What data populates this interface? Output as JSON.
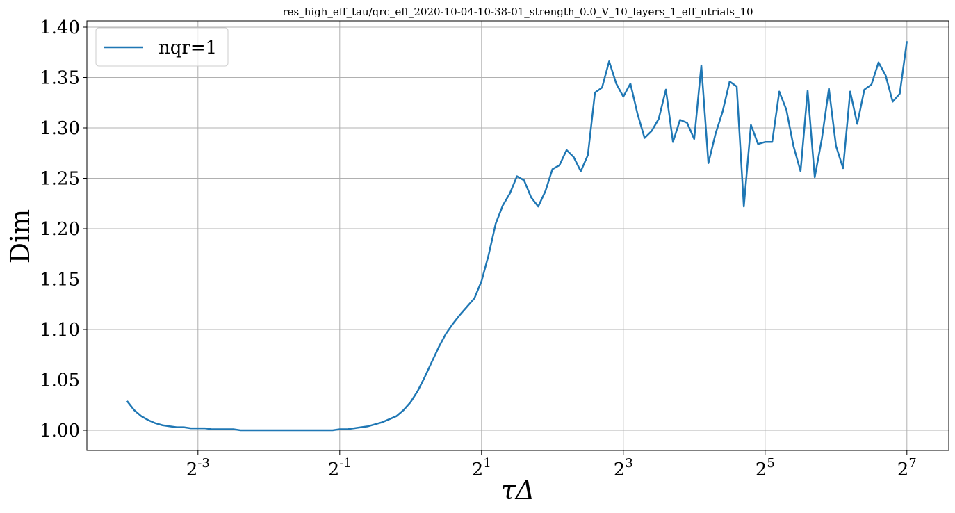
{
  "chart_data": {
    "type": "line",
    "title": "res_high_eff_tau/qrc_eff_2020-10-04-10-38-01_strength_0.0_V_10_layers_1_eff_ntrials_10",
    "xlabel": "τΔ",
    "ylabel": "Dim",
    "x": [
      0.0625,
      0.06699,
      0.07179,
      0.07694,
      0.08247,
      0.08839,
      0.09473,
      0.1015,
      0.1088,
      0.1166,
      0.125,
      0.134,
      0.1436,
      0.1539,
      0.1649,
      0.1768,
      0.1895,
      0.2031,
      0.2176,
      0.2333,
      0.25,
      0.268,
      0.2872,
      0.3078,
      0.3299,
      0.3536,
      0.3789,
      0.4061,
      0.4353,
      0.4665,
      0.5,
      0.5359,
      0.5743,
      0.6156,
      0.6598,
      0.7071,
      0.7579,
      0.8123,
      0.8706,
      0.933,
      1,
      1.072,
      1.149,
      1.231,
      1.32,
      1.414,
      1.516,
      1.625,
      1.741,
      1.866,
      2,
      2.144,
      2.297,
      2.462,
      2.639,
      2.828,
      3.031,
      3.249,
      3.482,
      3.732,
      4,
      4.287,
      4.595,
      4.925,
      5.278,
      5.657,
      6.063,
      6.498,
      6.964,
      7.464,
      8,
      8.574,
      9.19,
      9.849,
      10.56,
      11.31,
      12.13,
      13,
      13.93,
      14.93,
      16,
      17.15,
      18.38,
      19.7,
      21.11,
      22.63,
      24.25,
      25.99,
      27.86,
      29.86,
      32,
      34.3,
      36.76,
      39.4,
      42.22,
      45.25,
      48.5,
      51.98,
      55.72,
      59.71,
      64,
      68.59,
      73.52,
      78.79,
      84.45,
      90.51,
      97.01,
      104,
      111.4,
      119.4,
      128
    ],
    "series": [
      {
        "name": "nqr=1",
        "color": "#1f77b4",
        "values": [
          1.029,
          1.02,
          1.014,
          1.01,
          1.007,
          1.005,
          1.004,
          1.003,
          1.003,
          1.002,
          1.002,
          1.002,
          1.001,
          1.001,
          1.001,
          1.001,
          1.0,
          1.0,
          1.0,
          1.0,
          1.0,
          1.0,
          1.0,
          1.0,
          1.0,
          1.0,
          1.0,
          1.0,
          1.0,
          1.0,
          1.001,
          1.001,
          1.002,
          1.003,
          1.004,
          1.006,
          1.008,
          1.011,
          1.014,
          1.02,
          1.028,
          1.039,
          1.053,
          1.068,
          1.083,
          1.096,
          1.106,
          1.115,
          1.123,
          1.131,
          1.148,
          1.174,
          1.205,
          1.223,
          1.235,
          1.252,
          1.248,
          1.231,
          1.222,
          1.237,
          1.259,
          1.263,
          1.278,
          1.271,
          1.257,
          1.273,
          1.335,
          1.34,
          1.366,
          1.344,
          1.331,
          1.344,
          1.314,
          1.29,
          1.297,
          1.309,
          1.338,
          1.286,
          1.308,
          1.305,
          1.289,
          1.362,
          1.265,
          1.294,
          1.316,
          1.346,
          1.341,
          1.222,
          1.303,
          1.284,
          1.286,
          1.286,
          1.336,
          1.318,
          1.282,
          1.257,
          1.337,
          1.251,
          1.289,
          1.339,
          1.282,
          1.26,
          1.336,
          1.304,
          1.338,
          1.343,
          1.365,
          1.352,
          1.326,
          1.334,
          1.386
        ]
      }
    ],
    "xscale": "log2",
    "xlim": [
      0.0422,
      192.7
    ],
    "xticks": [
      {
        "value": 0.125,
        "label": "2^-3"
      },
      {
        "value": 0.5,
        "label": "2^-1"
      },
      {
        "value": 2,
        "label": "2^1"
      },
      {
        "value": 8,
        "label": "2^3"
      },
      {
        "value": 32,
        "label": "2^5"
      },
      {
        "value": 128,
        "label": "2^7"
      }
    ],
    "ylim": [
      0.98,
      1.4062
    ],
    "yticks": [
      {
        "value": 1,
        "label": "1.00"
      },
      {
        "value": 1.05,
        "label": "1.05"
      },
      {
        "value": 1.1,
        "label": "1.10"
      },
      {
        "value": 1.15,
        "label": "1.15"
      },
      {
        "value": 1.2,
        "label": "1.20"
      },
      {
        "value": 1.25,
        "label": "1.25"
      },
      {
        "value": 1.3,
        "label": "1.30"
      },
      {
        "value": 1.35,
        "label": "1.35"
      },
      {
        "value": 1.4,
        "label": "1.40"
      }
    ],
    "grid": true,
    "legend": "upper left"
  }
}
